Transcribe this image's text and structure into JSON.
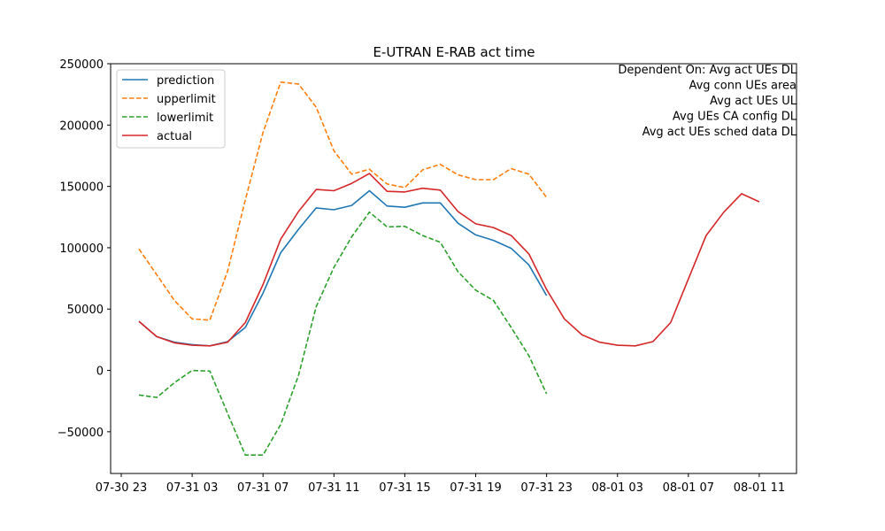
{
  "chart_data": {
    "type": "line",
    "title": "E-UTRAN E-RAB act time",
    "xlabel": "",
    "ylabel": "",
    "x_ticks": [
      "07-30 23",
      "07-31 03",
      "07-31 07",
      "07-31 11",
      "07-31 15",
      "07-31 19",
      "07-31 23",
      "08-01 03",
      "08-01 07",
      "08-01 11"
    ],
    "y_ticks": [
      "250000",
      "200000",
      "150000",
      "100000",
      "50000",
      "0",
      "−50000"
    ],
    "xlim_hours": [
      -0.6,
      38.1
    ],
    "ylim": [
      -84000,
      250000
    ],
    "x_start": "07-30 23",
    "x_step_hours": 1,
    "annotation": [
      "Dependent On: Avg act UEs DL",
      "Avg conn UEs area",
      "Avg act UEs UL",
      "Avg UEs CA config DL",
      "Avg act UEs sched data DL"
    ],
    "legend_position": "top-left",
    "series": [
      {
        "name": "prediction",
        "color": "#1f77b4",
        "dash": "solid",
        "offset": 1,
        "values": [
          40000,
          27500,
          23000,
          21000,
          20000,
          23500,
          35000,
          63000,
          96000,
          115000,
          132500,
          131000,
          134500,
          146500,
          134000,
          133000,
          136500,
          136500,
          120000,
          110500,
          106000,
          99500,
          86000,
          61000
        ]
      },
      {
        "name": "upperlimit",
        "color": "#ff7f0e",
        "dash": "dashed",
        "offset": 1,
        "values": [
          99000,
          78000,
          57000,
          42000,
          41000,
          81000,
          139000,
          194000,
          235000,
          233500,
          214500,
          179000,
          160000,
          164000,
          152000,
          149000,
          163500,
          168000,
          159500,
          155500,
          155500,
          164500,
          160000,
          141000
        ]
      },
      {
        "name": "lowerlimit",
        "color": "#2ca02c",
        "dash": "dashed",
        "offset": 1,
        "values": [
          -20000,
          -22000,
          -10000,
          0,
          -500,
          -35000,
          -69000,
          -69000,
          -44000,
          -4000,
          52000,
          84000,
          109000,
          129000,
          117000,
          117500,
          110000,
          104500,
          80500,
          65500,
          57000,
          35000,
          12000,
          -19000
        ]
      },
      {
        "name": "actual",
        "color": "#d62728",
        "dash": "solid",
        "offset": 1,
        "values": [
          40000,
          27500,
          22500,
          20500,
          20000,
          23000,
          39000,
          70000,
          107000,
          129500,
          147500,
          146500,
          152500,
          160500,
          146000,
          145500,
          148500,
          147000,
          129500,
          119500,
          116500,
          110000,
          95000,
          66000,
          42000,
          29000,
          23000,
          20500,
          20000,
          23500,
          39000,
          74500,
          110000,
          129000,
          144000,
          137500
        ]
      }
    ]
  }
}
